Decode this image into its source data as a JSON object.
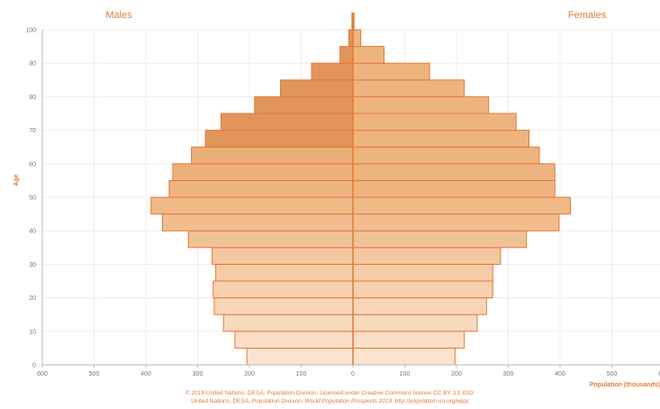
{
  "chart_data": {
    "type": "bar",
    "orientation": "horizontal",
    "title_left": "Males",
    "title_right": "Females",
    "ylabel": "Age",
    "xlabel": "Population (thousands)",
    "x_ticks": [
      "600",
      "500",
      "400",
      "300",
      "200",
      "100",
      "0",
      "100",
      "200",
      "300",
      "400",
      "500",
      "600"
    ],
    "y_ticks": [
      "0",
      "10",
      "20",
      "30",
      "40",
      "50",
      "60",
      "70",
      "80",
      "90",
      "100"
    ],
    "xlim": [
      -600,
      600
    ],
    "ylim": [
      0,
      100
    ],
    "grid": true,
    "colors": {
      "accent": "#e07b39",
      "bar_stroke": "#e07b39",
      "fill_young": "#fbe3cf",
      "fill_mid": "#eeb47f",
      "fill_old": "#e1955a"
    },
    "categories": [
      "0-4",
      "5-9",
      "10-14",
      "15-19",
      "20-24",
      "25-29",
      "30-34",
      "35-39",
      "40-44",
      "45-49",
      "50-54",
      "55-59",
      "60-64",
      "65-69",
      "70-74",
      "75-79",
      "80-84",
      "85-89",
      "90-94",
      "95-99",
      "100+"
    ],
    "series": [
      {
        "name": "Males",
        "values": [
          205,
          228,
          250,
          268,
          270,
          265,
          272,
          318,
          368,
          390,
          355,
          348,
          312,
          285,
          255,
          190,
          140,
          80,
          25,
          8,
          2
        ]
      },
      {
        "name": "Females",
        "values": [
          197,
          215,
          240,
          258,
          270,
          270,
          285,
          335,
          398,
          420,
          390,
          390,
          360,
          340,
          315,
          262,
          215,
          148,
          60,
          15,
          2
        ]
      }
    ]
  },
  "credit": {
    "line1": "© 2019 United Nations, DESA, Population Division. Licensed under Creative Commons license CC BY 3.0 IGO.",
    "line2_a": "United Nations, DESA, Population Division.",
    "line2_b": "World Population Prospects 2019.",
    "line2_c": "http://population.un.org/wpp/"
  }
}
